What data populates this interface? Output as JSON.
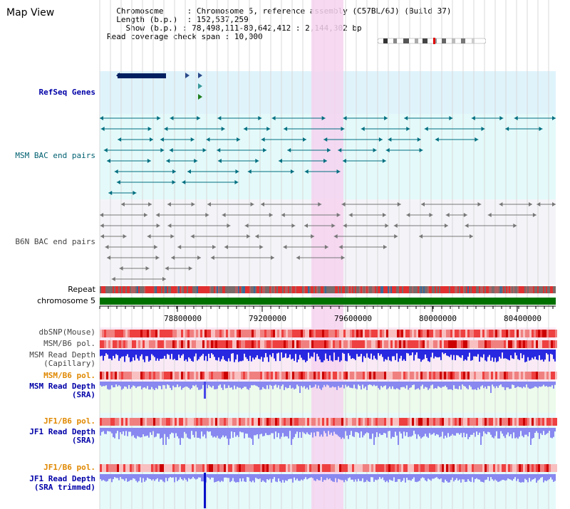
{
  "app": {
    "title": "Map View"
  },
  "header": {
    "chromosome_label": "Chromosome",
    "chromosome_value": "Chromosome 5, reference assembly (C57BL/6J) (Build 37)",
    "length_label": "Length (b.p.)",
    "length_value": "152,537,259",
    "show_label": "Show (b.p.)",
    "show_value": "78,498,111-80,642,412 : 2,144,302 bp",
    "coverage_label": "Read coverage check span",
    "coverage_value": "10,000"
  },
  "tracks": {
    "refseq": "RefSeq Genes",
    "msm_bac": "MSM BAC end pairs",
    "b6n_bac": "B6N BAC end pairs",
    "repeat": "Repeat",
    "chromosome": "chromosome 5",
    "dbsnp": "dbSNP(Mouse)",
    "msm_b6_pol_1": "MSM/B6 pol.",
    "msm_read_depth_cap_1": "MSM Read Depth",
    "msm_read_depth_cap_2": "(Capillary)",
    "msm_b6_pol_2": "MSM/B6 pol.",
    "msm_read_depth_sra_1": "MSM Read Depth",
    "msm_read_depth_sra_2": "(SRA)",
    "jf1_b6_pol_1": "JF1/B6 pol.",
    "jf1_read_depth_sra_1": "JF1 Read Depth",
    "jf1_read_depth_sra_2": "(SRA)",
    "jf1_b6_pol_2": "JF1/B6 pol.",
    "jf1_read_depth_trim_1": "JF1 Read Depth",
    "jf1_read_depth_trim_2": "(SRA trimmed)"
  },
  "axis": {
    "ticks": [
      "78800000",
      "79200000",
      "79600000",
      "80000000",
      "80400000"
    ]
  },
  "colors": {
    "highlight": "#f6d4f0",
    "refseq_bg": "#dff3fb",
    "msm_bg": "#e4fafa",
    "b6n_bg": "#f4f4f8",
    "chromosome": "#007000",
    "depth_blue": "#2020e0",
    "depth_light": "#8888f0"
  }
}
